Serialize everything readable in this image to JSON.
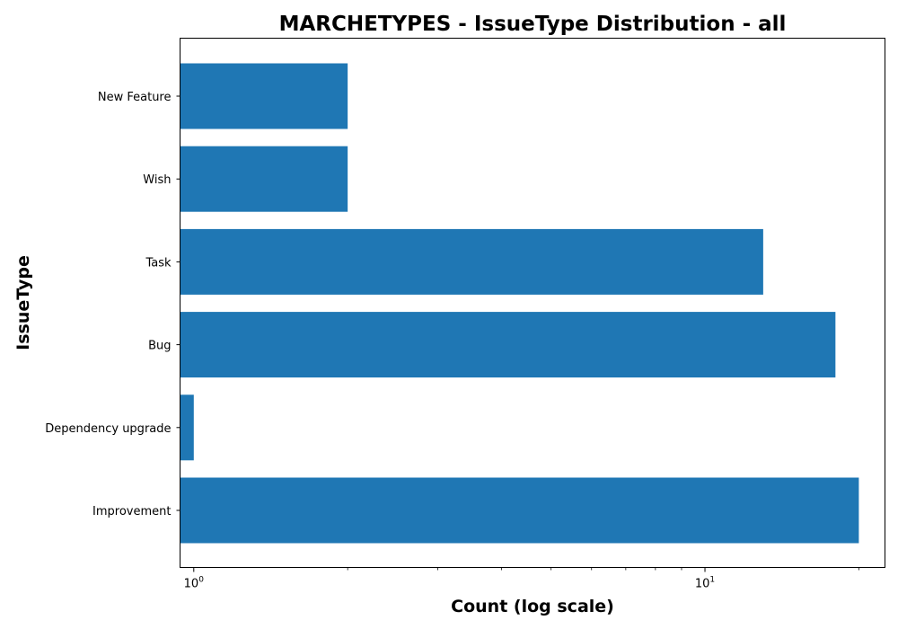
{
  "chart_data": {
    "type": "bar",
    "orientation": "horizontal",
    "title": "MARCHETYPES - IssueType Distribution - all",
    "xlabel": "Count (log scale)",
    "ylabel": "IssueType",
    "x_scale": "log",
    "xlim": [
      0.94,
      22.5
    ],
    "x_ticks": [
      {
        "value": 1,
        "base": "10",
        "exp": "0"
      },
      {
        "value": 10,
        "base": "10",
        "exp": "1"
      }
    ],
    "categories": [
      "Improvement",
      "Dependency upgrade",
      "Bug",
      "Task",
      "Wish",
      "New Feature"
    ],
    "values": [
      20,
      1,
      18,
      13,
      2,
      2
    ],
    "bar_color": "#1f77b4",
    "grid": false,
    "legend": "none"
  }
}
